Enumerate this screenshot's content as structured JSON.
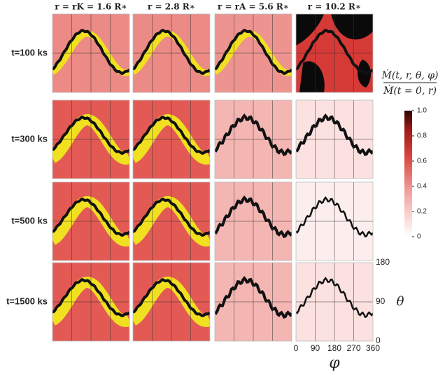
{
  "chart_data": {
    "type": "heatmap-grid",
    "column_titles": [
      "r = rK = 1.6 R∗",
      "r = 2.8 R∗",
      "r = rA = 5.6 R∗",
      "r = 10.2 R∗"
    ],
    "row_titles": [
      "t=100 ks",
      "t=300 ks",
      "t=500 ks",
      "t=1500 ks"
    ],
    "colorbar_label": [
      "Ṁ(t, r, θ, φ)",
      "Ṁ(t = 0, r)"
    ],
    "colorbar_lim": [
      0,
      1
    ],
    "colorbar_ticks": [
      0,
      0.2,
      0.4,
      0.6,
      0.8,
      {
        "value": 1,
        "label": "1.0"
      }
    ],
    "xlabel": "φ",
    "xlim": [
      0,
      360
    ],
    "xticks": [
      0,
      90,
      180,
      270,
      360
    ],
    "ylabel": "θ",
    "ylim": [
      0,
      180
    ],
    "yticks": [
      0,
      90,
      180
    ]
  }
}
